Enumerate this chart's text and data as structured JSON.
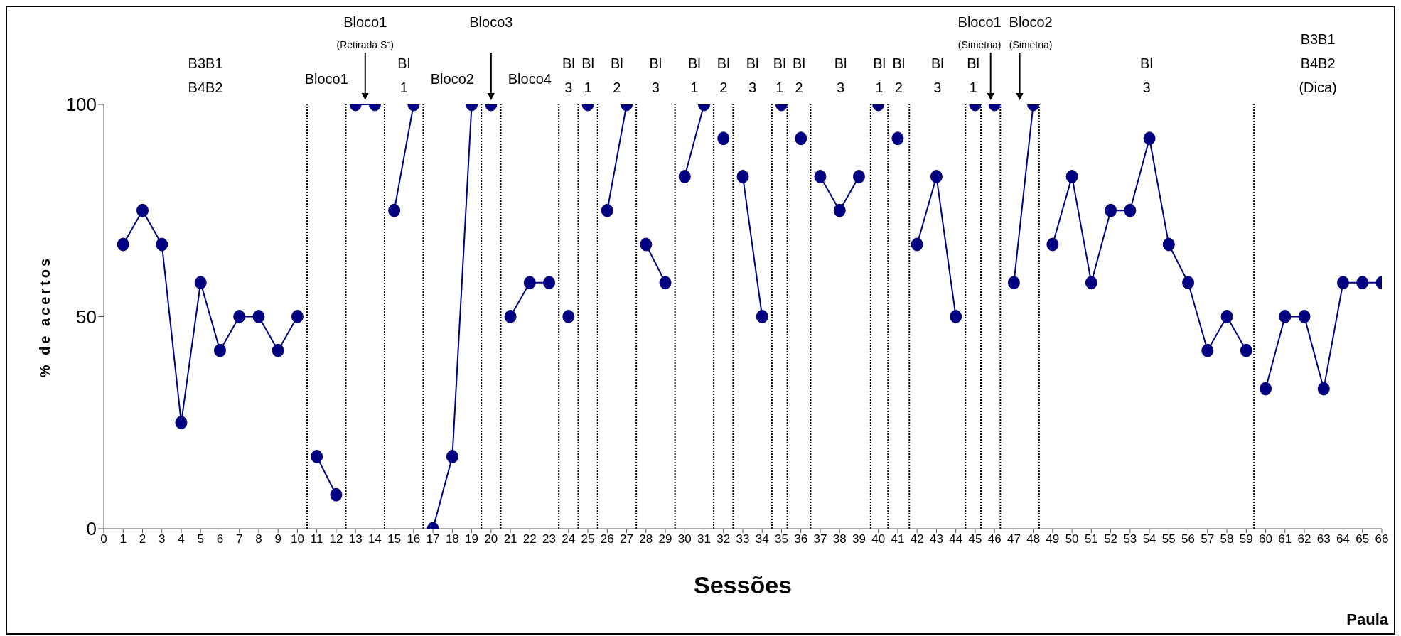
{
  "chart_data": {
    "type": "line",
    "xlabel": "Sessões",
    "ylabel": "% de acertos",
    "xlim": [
      0,
      66
    ],
    "ylim": [
      0,
      100
    ],
    "yticks": [
      0,
      50,
      100
    ],
    "xticks": [
      0,
      1,
      2,
      3,
      4,
      5,
      6,
      7,
      8,
      9,
      10,
      11,
      12,
      13,
      14,
      15,
      16,
      17,
      18,
      19,
      20,
      21,
      22,
      23,
      24,
      25,
      26,
      27,
      28,
      29,
      30,
      31,
      32,
      33,
      34,
      35,
      36,
      37,
      38,
      39,
      40,
      41,
      42,
      43,
      44,
      45,
      46,
      47,
      48,
      49,
      50,
      51,
      52,
      53,
      54,
      55,
      56,
      57,
      58,
      59,
      60,
      61,
      62,
      63,
      64,
      65,
      66
    ],
    "grid": false,
    "marker": "circle",
    "line_style": "solid",
    "series": [
      {
        "color": "#000080",
        "x": [
          1,
          2,
          3,
          4,
          5,
          6,
          7,
          8,
          9,
          10
        ],
        "values": [
          67,
          75,
          67,
          25,
          58,
          42,
          50,
          50,
          42,
          50
        ]
      },
      {
        "color": "#000080",
        "x": [
          11,
          12
        ],
        "values": [
          17,
          8
        ]
      },
      {
        "color": "#000080",
        "x": [
          13,
          14
        ],
        "values": [
          100,
          100
        ]
      },
      {
        "color": "#000080",
        "x": [
          15,
          16
        ],
        "values": [
          75,
          100
        ]
      },
      {
        "color": "#000080",
        "x": [
          17,
          18,
          19
        ],
        "values": [
          0,
          17,
          100
        ]
      },
      {
        "color": "#000080",
        "x": [
          20
        ],
        "values": [
          100
        ]
      },
      {
        "color": "#000080",
        "x": [
          21,
          22,
          23
        ],
        "values": [
          50,
          58,
          58
        ]
      },
      {
        "color": "#000080",
        "x": [
          24
        ],
        "values": [
          50
        ]
      },
      {
        "color": "#000080",
        "x": [
          25
        ],
        "values": [
          100
        ]
      },
      {
        "color": "#000080",
        "x": [
          26,
          27
        ],
        "values": [
          75,
          100
        ]
      },
      {
        "color": "#000080",
        "x": [
          28,
          29
        ],
        "values": [
          67,
          58
        ]
      },
      {
        "color": "#000080",
        "x": [
          30,
          31
        ],
        "values": [
          83,
          100
        ]
      },
      {
        "color": "#000080",
        "x": [
          32
        ],
        "values": [
          92
        ]
      },
      {
        "color": "#000080",
        "x": [
          33,
          34
        ],
        "values": [
          83,
          50
        ]
      },
      {
        "color": "#000080",
        "x": [
          35
        ],
        "values": [
          100
        ]
      },
      {
        "color": "#000080",
        "x": [
          36
        ],
        "values": [
          92
        ]
      },
      {
        "color": "#000080",
        "x": [
          37,
          38,
          39
        ],
        "values": [
          83,
          75,
          83
        ]
      },
      {
        "color": "#000080",
        "x": [
          40
        ],
        "values": [
          100
        ]
      },
      {
        "color": "#000080",
        "x": [
          41
        ],
        "values": [
          92
        ]
      },
      {
        "color": "#000080",
        "x": [
          42,
          43,
          44
        ],
        "values": [
          67,
          83,
          50
        ]
      },
      {
        "color": "#000080",
        "x": [
          45
        ],
        "values": [
          100
        ]
      },
      {
        "color": "#000080",
        "x": [
          46
        ],
        "values": [
          100
        ]
      },
      {
        "color": "#000080",
        "x": [
          47,
          48
        ],
        "values": [
          58,
          100
        ]
      },
      {
        "color": "#000080",
        "x": [
          49,
          50,
          51,
          52,
          53,
          54,
          55,
          56,
          57,
          58,
          59
        ],
        "values": [
          67,
          83,
          58,
          75,
          75,
          92,
          67,
          58,
          42,
          50,
          42
        ]
      },
      {
        "color": "#000080",
        "x": [
          60,
          61,
          62,
          63,
          64,
          65,
          66
        ],
        "values": [
          33,
          50,
          50,
          33,
          58,
          58,
          58
        ]
      }
    ],
    "ref_lines": [
      {
        "axis": "x",
        "value": 10.5,
        "line_style": "dotted",
        "color": "#000000"
      },
      {
        "axis": "x",
        "value": 12.5,
        "line_style": "dotted",
        "color": "#000000"
      },
      {
        "axis": "x",
        "value": 14.5,
        "line_style": "dotted",
        "color": "#000000"
      },
      {
        "axis": "x",
        "value": 16.5,
        "line_style": "dotted",
        "color": "#000000"
      },
      {
        "axis": "x",
        "value": 19.5,
        "line_style": "dotted",
        "color": "#000000"
      },
      {
        "axis": "x",
        "value": 20.5,
        "line_style": "dotted",
        "color": "#000000"
      },
      {
        "axis": "x",
        "value": 23.5,
        "line_style": "dotted",
        "color": "#000000"
      },
      {
        "axis": "x",
        "value": 24.5,
        "line_style": "dotted",
        "color": "#000000"
      },
      {
        "axis": "x",
        "value": 25.5,
        "line_style": "dotted",
        "color": "#000000"
      },
      {
        "axis": "x",
        "value": 27.5,
        "line_style": "dotted",
        "color": "#000000"
      },
      {
        "axis": "x",
        "value": 29.5,
        "line_style": "dotted",
        "color": "#000000"
      },
      {
        "axis": "x",
        "value": 31.5,
        "line_style": "dotted",
        "color": "#000000"
      },
      {
        "axis": "x",
        "value": 32.5,
        "line_style": "dotted",
        "color": "#000000"
      },
      {
        "axis": "x",
        "value": 34.5,
        "line_style": "dotted",
        "color": "#000000"
      },
      {
        "axis": "x",
        "value": 35.3,
        "line_style": "dotted",
        "color": "#000000"
      },
      {
        "axis": "x",
        "value": 36.5,
        "line_style": "dotted",
        "color": "#000000"
      },
      {
        "axis": "x",
        "value": 39.6,
        "line_style": "dotted",
        "color": "#000000"
      },
      {
        "axis": "x",
        "value": 40.5,
        "line_style": "dotted",
        "color": "#000000"
      },
      {
        "axis": "x",
        "value": 41.6,
        "line_style": "dotted",
        "color": "#000000"
      },
      {
        "axis": "x",
        "value": 44.5,
        "line_style": "dotted",
        "color": "#000000"
      },
      {
        "axis": "x",
        "value": 45.3,
        "line_style": "dotted",
        "color": "#000000"
      },
      {
        "axis": "x",
        "value": 46.3,
        "line_style": "dotted",
        "color": "#000000"
      },
      {
        "axis": "x",
        "value": 48.3,
        "line_style": "dotted",
        "color": "#000000"
      },
      {
        "axis": "x",
        "value": 59.4,
        "line_style": "dotted",
        "color": "#000000"
      }
    ],
    "annotations": [
      "B3B1\nB4B2",
      "Bloco1",
      "Bloco1\n(Retirada S⁻)",
      "Bl\n1",
      "Bloco2",
      "Bloco3",
      "Bloco4",
      "Bl\n3",
      "Bl\n1",
      "Bl\n2",
      "Bl\n3",
      "Bl\n1",
      "Bl\n2",
      "Bl\n3",
      "Bl\n1",
      "Bl\n2",
      "Bl\n3",
      "Bl\n1",
      "Bl\n2",
      "Bl\n3",
      "Bl\n1",
      "Bloco1\n(Simetria)",
      "Bloco2\n(Simetria)",
      "Bl\n3",
      "B3B1\nB4B2\n(Dica)",
      "Paula"
    ]
  }
}
